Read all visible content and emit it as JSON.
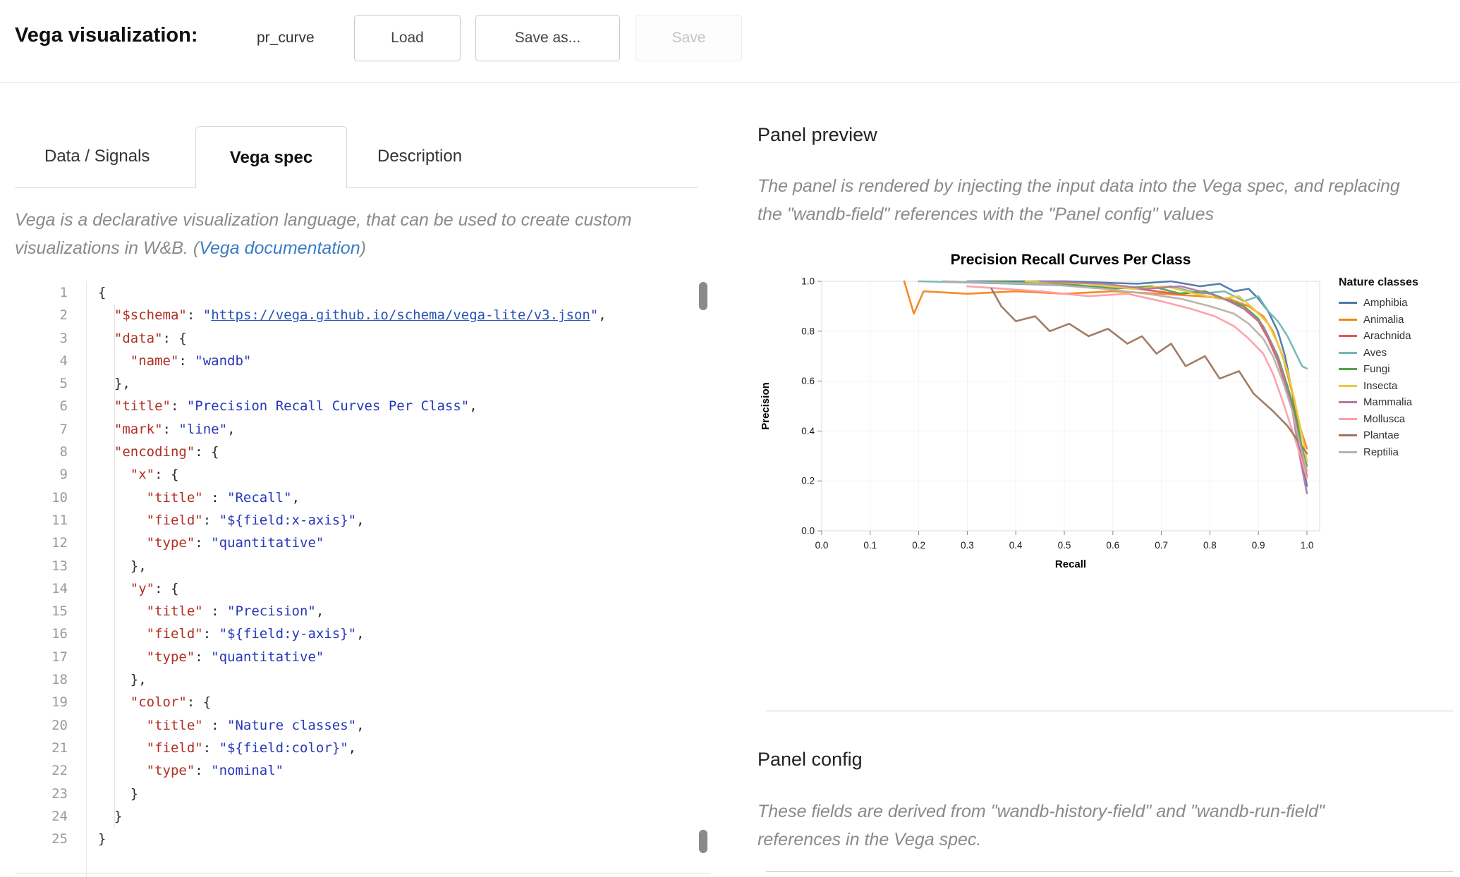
{
  "header": {
    "title": "Vega visualization:",
    "name": "pr_curve",
    "load_label": "Load",
    "save_as_label": "Save as...",
    "save_label": "Save"
  },
  "tabs": [
    {
      "label": "Data / Signals",
      "active": false
    },
    {
      "label": "Vega spec",
      "active": true
    },
    {
      "label": "Description",
      "active": false
    }
  ],
  "intro": {
    "line1": "Vega is a declarative visualization language, that can be used to create custom",
    "line2_before": "visualizations in W&B. (",
    "link_label": "Vega documentation",
    "line2_after": ")"
  },
  "editor": {
    "lines": [
      {
        "num": 1,
        "tokens": [
          {
            "c": "p",
            "v": "{"
          }
        ]
      },
      {
        "num": 2,
        "tokens": [
          {
            "c": "p",
            "v": "  "
          },
          {
            "c": "k",
            "v": "\"$schema\""
          },
          {
            "c": "p",
            "v": ": "
          },
          {
            "c": "s",
            "v": "\""
          },
          {
            "c": "l",
            "v": "https://vega.github.io/schema/vega-lite/v3.json"
          },
          {
            "c": "s",
            "v": "\""
          },
          {
            "c": "p",
            "v": ","
          }
        ]
      },
      {
        "num": 3,
        "tokens": [
          {
            "c": "p",
            "v": "  "
          },
          {
            "c": "k",
            "v": "\"data\""
          },
          {
            "c": "p",
            "v": ": {"
          }
        ]
      },
      {
        "num": 4,
        "tokens": [
          {
            "c": "p",
            "v": "    "
          },
          {
            "c": "k",
            "v": "\"name\""
          },
          {
            "c": "p",
            "v": ": "
          },
          {
            "c": "s",
            "v": "\"wandb\""
          }
        ]
      },
      {
        "num": 5,
        "tokens": [
          {
            "c": "p",
            "v": "  },"
          }
        ]
      },
      {
        "num": 6,
        "tokens": [
          {
            "c": "p",
            "v": "  "
          },
          {
            "c": "k",
            "v": "\"title\""
          },
          {
            "c": "p",
            "v": ": "
          },
          {
            "c": "s",
            "v": "\"Precision Recall Curves Per Class\""
          },
          {
            "c": "p",
            "v": ","
          }
        ]
      },
      {
        "num": 7,
        "tokens": [
          {
            "c": "p",
            "v": "  "
          },
          {
            "c": "k",
            "v": "\"mark\""
          },
          {
            "c": "p",
            "v": ": "
          },
          {
            "c": "s",
            "v": "\"line\""
          },
          {
            "c": "p",
            "v": ","
          }
        ]
      },
      {
        "num": 8,
        "tokens": [
          {
            "c": "p",
            "v": "  "
          },
          {
            "c": "k",
            "v": "\"encoding\""
          },
          {
            "c": "p",
            "v": ": {"
          }
        ]
      },
      {
        "num": 9,
        "tokens": [
          {
            "c": "p",
            "v": "    "
          },
          {
            "c": "k",
            "v": "\"x\""
          },
          {
            "c": "p",
            "v": ": {"
          }
        ]
      },
      {
        "num": 10,
        "tokens": [
          {
            "c": "p",
            "v": "      "
          },
          {
            "c": "k",
            "v": "\"title\""
          },
          {
            "c": "p",
            "v": " : "
          },
          {
            "c": "s",
            "v": "\"Recall\""
          },
          {
            "c": "p",
            "v": ","
          }
        ]
      },
      {
        "num": 11,
        "tokens": [
          {
            "c": "p",
            "v": "      "
          },
          {
            "c": "k",
            "v": "\"field\""
          },
          {
            "c": "p",
            "v": ": "
          },
          {
            "c": "s",
            "v": "\"${field:x-axis}\""
          },
          {
            "c": "p",
            "v": ","
          }
        ]
      },
      {
        "num": 12,
        "tokens": [
          {
            "c": "p",
            "v": "      "
          },
          {
            "c": "k",
            "v": "\"type\""
          },
          {
            "c": "p",
            "v": ": "
          },
          {
            "c": "s",
            "v": "\"quantitative\""
          }
        ]
      },
      {
        "num": 13,
        "tokens": [
          {
            "c": "p",
            "v": "    },"
          }
        ]
      },
      {
        "num": 14,
        "tokens": [
          {
            "c": "p",
            "v": "    "
          },
          {
            "c": "k",
            "v": "\"y\""
          },
          {
            "c": "p",
            "v": ": {"
          }
        ]
      },
      {
        "num": 15,
        "tokens": [
          {
            "c": "p",
            "v": "      "
          },
          {
            "c": "k",
            "v": "\"title\""
          },
          {
            "c": "p",
            "v": " : "
          },
          {
            "c": "s",
            "v": "\"Precision\""
          },
          {
            "c": "p",
            "v": ","
          }
        ]
      },
      {
        "num": 16,
        "tokens": [
          {
            "c": "p",
            "v": "      "
          },
          {
            "c": "k",
            "v": "\"field\""
          },
          {
            "c": "p",
            "v": ": "
          },
          {
            "c": "s",
            "v": "\"${field:y-axis}\""
          },
          {
            "c": "p",
            "v": ","
          }
        ]
      },
      {
        "num": 17,
        "tokens": [
          {
            "c": "p",
            "v": "      "
          },
          {
            "c": "k",
            "v": "\"type\""
          },
          {
            "c": "p",
            "v": ": "
          },
          {
            "c": "s",
            "v": "\"quantitative\""
          }
        ]
      },
      {
        "num": 18,
        "tokens": [
          {
            "c": "p",
            "v": "    },"
          }
        ]
      },
      {
        "num": 19,
        "tokens": [
          {
            "c": "p",
            "v": "    "
          },
          {
            "c": "k",
            "v": "\"color\""
          },
          {
            "c": "p",
            "v": ": {"
          }
        ]
      },
      {
        "num": 20,
        "tokens": [
          {
            "c": "p",
            "v": "      "
          },
          {
            "c": "k",
            "v": "\"title\""
          },
          {
            "c": "p",
            "v": " : "
          },
          {
            "c": "s",
            "v": "\"Nature classes\""
          },
          {
            "c": "p",
            "v": ","
          }
        ]
      },
      {
        "num": 21,
        "tokens": [
          {
            "c": "p",
            "v": "      "
          },
          {
            "c": "k",
            "v": "\"field\""
          },
          {
            "c": "p",
            "v": ": "
          },
          {
            "c": "s",
            "v": "\"${field:color}\""
          },
          {
            "c": "p",
            "v": ","
          }
        ]
      },
      {
        "num": 22,
        "tokens": [
          {
            "c": "p",
            "v": "      "
          },
          {
            "c": "k",
            "v": "\"type\""
          },
          {
            "c": "p",
            "v": ": "
          },
          {
            "c": "s",
            "v": "\"nominal\""
          }
        ]
      },
      {
        "num": 23,
        "tokens": [
          {
            "c": "p",
            "v": "    }"
          }
        ]
      },
      {
        "num": 24,
        "tokens": [
          {
            "c": "p",
            "v": "  }"
          }
        ]
      },
      {
        "num": 25,
        "tokens": [
          {
            "c": "p",
            "v": "}"
          }
        ]
      }
    ]
  },
  "panel_preview": {
    "heading": "Panel preview",
    "description_lines": [
      "The panel is rendered by injecting the input data into the Vega spec, and replacing",
      "the \"wandb-field\" references with the \"Panel config\" values"
    ]
  },
  "panel_config": {
    "heading": "Panel config",
    "description_lines": [
      "These fields are derived from \"wandb-history-field\" and \"wandb-run-field\"",
      "references in the Vega spec."
    ]
  },
  "chart_data": {
    "type": "line",
    "title": "Precision Recall Curves Per Class",
    "xlabel": "Recall",
    "ylabel": "Precision",
    "xlim": [
      0,
      1
    ],
    "ylim": [
      0,
      1
    ],
    "x_ticks": [
      "0.0",
      "0.1",
      "0.2",
      "0.3",
      "0.4",
      "0.5",
      "0.6",
      "0.7",
      "0.8",
      "0.9",
      "1.0"
    ],
    "y_ticks": [
      "0.0",
      "0.2",
      "0.4",
      "0.6",
      "0.8",
      "1.0"
    ],
    "grid": true,
    "legend_title": "Nature classes",
    "legend_position": "right",
    "series": [
      {
        "name": "Amphibia",
        "color": "#4c78a8",
        "points": [
          [
            0.3,
            1.0
          ],
          [
            0.5,
            1.0
          ],
          [
            0.65,
            0.99
          ],
          [
            0.72,
            1.0
          ],
          [
            0.78,
            0.98
          ],
          [
            0.82,
            0.99
          ],
          [
            0.85,
            0.96
          ],
          [
            0.88,
            0.97
          ],
          [
            0.9,
            0.93
          ],
          [
            0.92,
            0.88
          ],
          [
            0.94,
            0.8
          ],
          [
            0.955,
            0.7
          ],
          [
            0.97,
            0.55
          ],
          [
            0.98,
            0.4
          ],
          [
            0.99,
            0.28
          ],
          [
            1.0,
            0.18
          ]
        ]
      },
      {
        "name": "Animalia",
        "color": "#f58518",
        "points": [
          [
            0.17,
            1.0
          ],
          [
            0.19,
            0.87
          ],
          [
            0.21,
            0.96
          ],
          [
            0.3,
            0.95
          ],
          [
            0.4,
            0.96
          ],
          [
            0.5,
            0.95
          ],
          [
            0.6,
            0.96
          ],
          [
            0.7,
            0.95
          ],
          [
            0.78,
            0.94
          ],
          [
            0.84,
            0.93
          ],
          [
            0.88,
            0.9
          ],
          [
            0.91,
            0.86
          ],
          [
            0.93,
            0.8
          ],
          [
            0.95,
            0.7
          ],
          [
            0.97,
            0.55
          ],
          [
            0.985,
            0.42
          ],
          [
            1.0,
            0.33
          ]
        ]
      },
      {
        "name": "Arachnida",
        "color": "#e45756",
        "points": [
          [
            0.25,
            1.0
          ],
          [
            0.4,
            0.99
          ],
          [
            0.55,
            0.98
          ],
          [
            0.65,
            0.97
          ],
          [
            0.73,
            0.95
          ],
          [
            0.79,
            0.96
          ],
          [
            0.83,
            0.93
          ],
          [
            0.87,
            0.89
          ],
          [
            0.9,
            0.84
          ],
          [
            0.92,
            0.77
          ],
          [
            0.94,
            0.68
          ],
          [
            0.96,
            0.56
          ],
          [
            0.98,
            0.42
          ],
          [
            0.99,
            0.3
          ],
          [
            1.0,
            0.22
          ]
        ]
      },
      {
        "name": "Aves",
        "color": "#72b7b2",
        "points": [
          [
            0.2,
            1.0
          ],
          [
            0.4,
            0.99
          ],
          [
            0.55,
            0.98
          ],
          [
            0.65,
            0.97
          ],
          [
            0.72,
            0.98
          ],
          [
            0.78,
            0.95
          ],
          [
            0.83,
            0.96
          ],
          [
            0.87,
            0.92
          ],
          [
            0.9,
            0.94
          ],
          [
            0.92,
            0.88
          ],
          [
            0.94,
            0.84
          ],
          [
            0.96,
            0.78
          ],
          [
            0.98,
            0.7
          ],
          [
            0.99,
            0.66
          ],
          [
            1.0,
            0.65
          ]
        ]
      },
      {
        "name": "Fungi",
        "color": "#54a24b",
        "points": [
          [
            0.35,
            1.0
          ],
          [
            0.5,
            0.99
          ],
          [
            0.6,
            0.97
          ],
          [
            0.68,
            0.98
          ],
          [
            0.74,
            0.95
          ],
          [
            0.79,
            0.96
          ],
          [
            0.83,
            0.93
          ],
          [
            0.87,
            0.9
          ],
          [
            0.9,
            0.85
          ],
          [
            0.92,
            0.78
          ],
          [
            0.94,
            0.7
          ],
          [
            0.96,
            0.58
          ],
          [
            0.98,
            0.44
          ],
          [
            0.99,
            0.33
          ],
          [
            1.0,
            0.26
          ]
        ]
      },
      {
        "name": "Insecta",
        "color": "#eeca3b",
        "points": [
          [
            0.42,
            1.0
          ],
          [
            0.55,
            0.99
          ],
          [
            0.64,
            0.97
          ],
          [
            0.71,
            0.98
          ],
          [
            0.77,
            0.95
          ],
          [
            0.82,
            0.93
          ],
          [
            0.86,
            0.94
          ],
          [
            0.89,
            0.89
          ],
          [
            0.92,
            0.83
          ],
          [
            0.94,
            0.75
          ],
          [
            0.96,
            0.64
          ],
          [
            0.975,
            0.52
          ],
          [
            0.99,
            0.38
          ],
          [
            1.0,
            0.28
          ]
        ]
      },
      {
        "name": "Mammalia",
        "color": "#b279a2",
        "points": [
          [
            0.45,
            1.0
          ],
          [
            0.58,
            0.99
          ],
          [
            0.67,
            0.97
          ],
          [
            0.74,
            0.98
          ],
          [
            0.8,
            0.95
          ],
          [
            0.84,
            0.92
          ],
          [
            0.88,
            0.88
          ],
          [
            0.91,
            0.82
          ],
          [
            0.93,
            0.74
          ],
          [
            0.95,
            0.63
          ],
          [
            0.97,
            0.48
          ],
          [
            0.985,
            0.3
          ],
          [
            1.0,
            0.15
          ]
        ]
      },
      {
        "name": "Mollusca",
        "color": "#ff9da6",
        "points": [
          [
            0.3,
            0.98
          ],
          [
            0.45,
            0.96
          ],
          [
            0.55,
            0.94
          ],
          [
            0.63,
            0.95
          ],
          [
            0.7,
            0.92
          ],
          [
            0.76,
            0.89
          ],
          [
            0.81,
            0.86
          ],
          [
            0.85,
            0.82
          ],
          [
            0.88,
            0.77
          ],
          [
            0.91,
            0.71
          ],
          [
            0.93,
            0.63
          ],
          [
            0.95,
            0.52
          ],
          [
            0.97,
            0.4
          ],
          [
            0.99,
            0.28
          ],
          [
            1.0,
            0.21
          ]
        ]
      },
      {
        "name": "Plantae",
        "color": "#9d755d",
        "points": [
          [
            0.35,
            0.97
          ],
          [
            0.37,
            0.9
          ],
          [
            0.4,
            0.84
          ],
          [
            0.44,
            0.86
          ],
          [
            0.47,
            0.8
          ],
          [
            0.51,
            0.83
          ],
          [
            0.55,
            0.78
          ],
          [
            0.59,
            0.81
          ],
          [
            0.63,
            0.75
          ],
          [
            0.66,
            0.78
          ],
          [
            0.69,
            0.71
          ],
          [
            0.72,
            0.75
          ],
          [
            0.75,
            0.66
          ],
          [
            0.79,
            0.7
          ],
          [
            0.82,
            0.61
          ],
          [
            0.86,
            0.64
          ],
          [
            0.89,
            0.55
          ],
          [
            0.93,
            0.48
          ],
          [
            0.96,
            0.42
          ],
          [
            1.0,
            0.31
          ]
        ]
      },
      {
        "name": "Reptilia",
        "color": "#bab0ac",
        "points": [
          [
            0.25,
            1.0
          ],
          [
            0.45,
            0.99
          ],
          [
            0.58,
            0.97
          ],
          [
            0.67,
            0.95
          ],
          [
            0.74,
            0.93
          ],
          [
            0.8,
            0.9
          ],
          [
            0.85,
            0.87
          ],
          [
            0.88,
            0.83
          ],
          [
            0.91,
            0.77
          ],
          [
            0.93,
            0.7
          ],
          [
            0.95,
            0.6
          ],
          [
            0.97,
            0.48
          ],
          [
            0.985,
            0.35
          ],
          [
            1.0,
            0.24
          ]
        ]
      }
    ]
  }
}
